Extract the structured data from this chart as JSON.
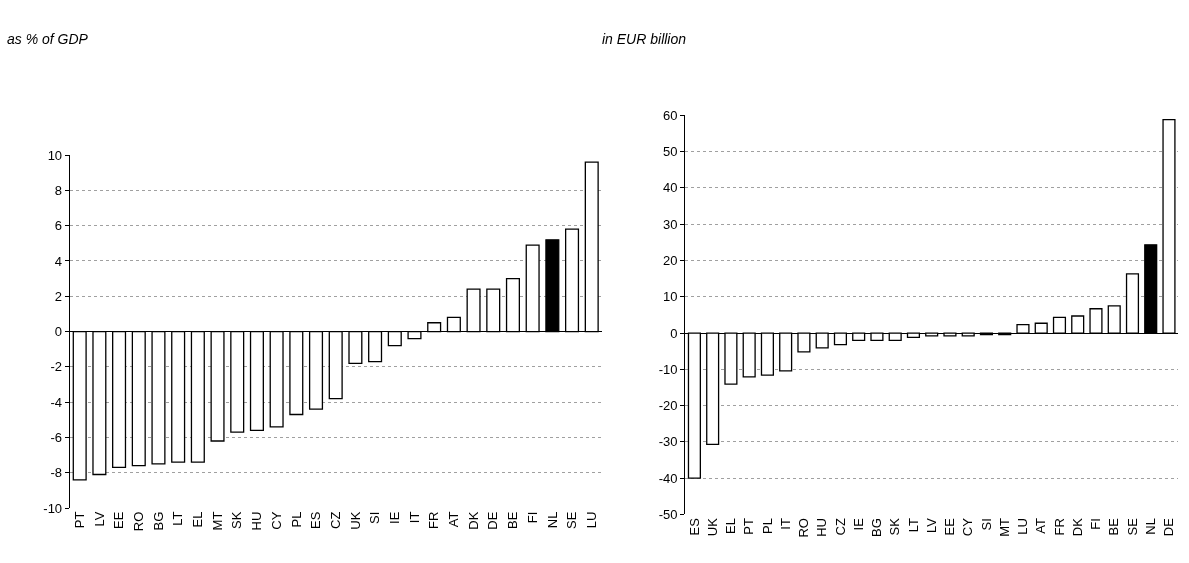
{
  "chart_data": [
    {
      "type": "bar",
      "title": "as % of GDP",
      "categories": [
        "PT",
        "LV",
        "EE",
        "RO",
        "BG",
        "LT",
        "EL",
        "MT",
        "SK",
        "HU",
        "CY",
        "PL",
        "ES",
        "CZ",
        "UK",
        "SI",
        "IE",
        "IT",
        "FR",
        "AT",
        "DK",
        "DE",
        "BE",
        "FI",
        "NL",
        "SE",
        "LU"
      ],
      "values": [
        -8.4,
        -8.1,
        -7.7,
        -7.6,
        -7.5,
        -7.4,
        -7.4,
        -6.2,
        -5.7,
        -5.6,
        -5.4,
        -4.7,
        -4.4,
        -3.8,
        -1.8,
        -1.7,
        -0.8,
        -0.4,
        0.5,
        0.8,
        2.4,
        2.4,
        3.0,
        4.9,
        5.2,
        5.8,
        9.6
      ],
      "colors": [
        "#ffffff",
        "#ffffff",
        "#ffffff",
        "#ffffff",
        "#ffffff",
        "#ffffff",
        "#ffffff",
        "#ffffff",
        "#ffffff",
        "#ffffff",
        "#ffffff",
        "#ffffff",
        "#ffffff",
        "#ffffff",
        "#ffffff",
        "#ffffff",
        "#ffffff",
        "#ffffff",
        "#ffffff",
        "#ffffff",
        "#ffffff",
        "#ffffff",
        "#ffffff",
        "#ffffff",
        "#000000",
        "#ffffff",
        "#ffffff"
      ],
      "ylim": [
        -10,
        10
      ],
      "yticks": [
        -10,
        -8,
        -6,
        -4,
        -2,
        0,
        2,
        4,
        6,
        8,
        10
      ],
      "grid": "y"
    },
    {
      "type": "bar",
      "title": "in EUR billion",
      "categories": [
        "ES",
        "UK",
        "EL",
        "PT",
        "PL",
        "IT",
        "RO",
        "HU",
        "CZ",
        "IE",
        "BG",
        "SK",
        "LT",
        "LV",
        "EE",
        "CY",
        "SI",
        "MT",
        "LU",
        "AT",
        "FR",
        "DK",
        "FI",
        "BE",
        "SE",
        "NL",
        "DE"
      ],
      "values": [
        -40,
        -30.7,
        -14.1,
        -12.1,
        -11.6,
        -10.4,
        -5.2,
        -4.1,
        -3.2,
        -2,
        -2,
        -2,
        -1.2,
        -0.8,
        -0.8,
        -0.8,
        -0.4,
        -0.4,
        2.3,
        2.7,
        4.3,
        4.7,
        6.7,
        7.5,
        16.3,
        24.3,
        58.8
      ],
      "colors": [
        "#ffffff",
        "#ffffff",
        "#ffffff",
        "#ffffff",
        "#ffffff",
        "#ffffff",
        "#ffffff",
        "#ffffff",
        "#ffffff",
        "#ffffff",
        "#ffffff",
        "#ffffff",
        "#ffffff",
        "#ffffff",
        "#ffffff",
        "#ffffff",
        "#ffffff",
        "#ffffff",
        "#ffffff",
        "#ffffff",
        "#ffffff",
        "#ffffff",
        "#ffffff",
        "#ffffff",
        "#ffffff",
        "#000000",
        "#ffffff"
      ],
      "ylim": [
        -50,
        60
      ],
      "yticks": [
        -50,
        -40,
        -30,
        -20,
        -10,
        0,
        10,
        20,
        30,
        40,
        50,
        60
      ],
      "grid": "y"
    }
  ]
}
